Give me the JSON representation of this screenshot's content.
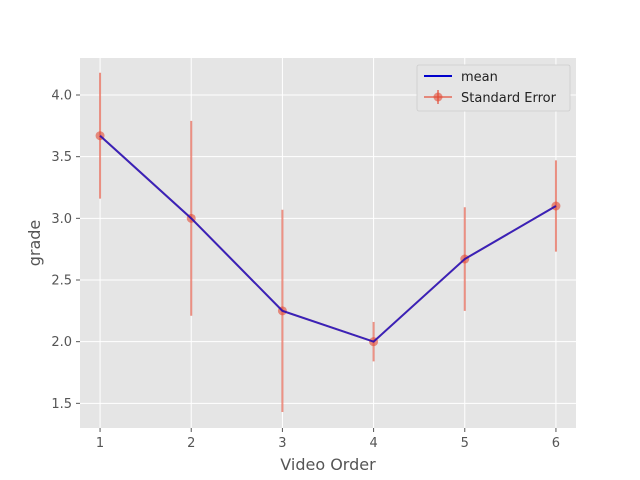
{
  "chart_data": {
    "type": "line",
    "xlabel": "Video Order",
    "ylabel": "grade",
    "x": [
      1,
      2,
      3,
      4,
      5,
      6
    ],
    "xticks": [
      "1",
      "2",
      "3",
      "4",
      "5",
      "6"
    ],
    "yticks": [
      "1.5",
      "2.0",
      "2.5",
      "3.0",
      "3.5",
      "4.0"
    ],
    "xlim": [
      0.78,
      6.22
    ],
    "ylim": [
      1.3,
      4.3
    ],
    "grid": true,
    "legend_position": "top-right",
    "series": [
      {
        "name": "mean",
        "values": [
          3.67,
          3.0,
          2.25,
          2.0,
          2.67,
          3.1
        ],
        "color": "#0000cc"
      },
      {
        "name": "Standard Error",
        "values": [
          3.67,
          3.0,
          2.25,
          2.0,
          2.67,
          3.1
        ],
        "error": [
          0.51,
          0.79,
          0.82,
          0.16,
          0.42,
          0.37
        ],
        "color": "#e24a33"
      }
    ]
  }
}
